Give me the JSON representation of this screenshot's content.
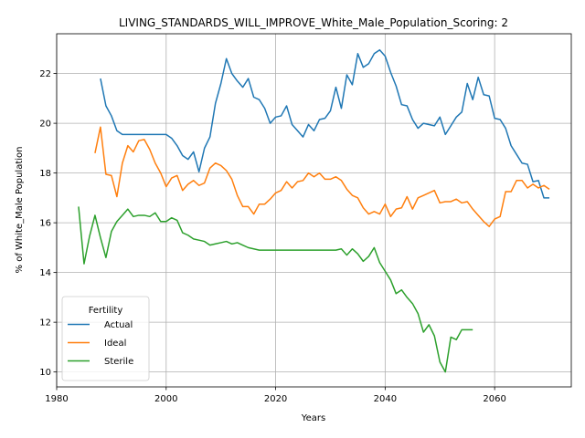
{
  "chart_data": {
    "type": "line",
    "title": "LIVING_STANDARDS_WILL_IMPROVE_White_Male_Population_Scoring: 2",
    "xlabel": "Years",
    "ylabel": "% of White_Male Population",
    "xlim": [
      1980,
      2074
    ],
    "ylim": [
      9.4,
      23.6
    ],
    "xticks": [
      1980,
      2000,
      2020,
      2040,
      2060
    ],
    "yticks": [
      10,
      12,
      14,
      16,
      18,
      20,
      22
    ],
    "grid": true,
    "legend": {
      "title": "Fertility",
      "placement": "lower-left"
    },
    "series": [
      {
        "name": "Actual",
        "color": "#1f77b4",
        "x": [
          1988,
          1989,
          1990,
          1991,
          1992,
          1993,
          1994,
          1995,
          1996,
          1997,
          1998,
          1999,
          2000,
          2001,
          2002,
          2003,
          2004,
          2005,
          2006,
          2007,
          2008,
          2009,
          2010,
          2011,
          2012,
          2013,
          2014,
          2015,
          2016,
          2017,
          2018,
          2019,
          2020,
          2021,
          2022,
          2023,
          2024,
          2025,
          2026,
          2027,
          2028,
          2029,
          2030,
          2031,
          2032,
          2033,
          2034,
          2035,
          2036,
          2037,
          2038,
          2039,
          2040,
          2041,
          2042,
          2043,
          2044,
          2045,
          2046,
          2047,
          2048,
          2049,
          2050,
          2051,
          2052,
          2053,
          2054,
          2055,
          2056,
          2057,
          2058,
          2059,
          2060,
          2061,
          2062,
          2063,
          2064,
          2065,
          2066,
          2067,
          2068,
          2069,
          2070
        ],
        "y": [
          21.8,
          20.7,
          20.3,
          19.7,
          19.55,
          19.55,
          19.55,
          19.55,
          19.55,
          19.55,
          19.55,
          19.55,
          19.55,
          19.4,
          19.1,
          18.7,
          18.55,
          18.85,
          18.05,
          19.0,
          19.45,
          20.8,
          21.6,
          22.6,
          22.0,
          21.7,
          21.45,
          21.8,
          21.05,
          20.95,
          20.6,
          20.0,
          20.25,
          20.3,
          20.7,
          19.95,
          19.7,
          19.45,
          19.95,
          19.7,
          20.15,
          20.2,
          20.5,
          21.45,
          20.6,
          21.95,
          21.55,
          22.8,
          22.25,
          22.4,
          22.8,
          22.95,
          22.7,
          22.05,
          21.5,
          20.75,
          20.7,
          20.15,
          19.8,
          20.0,
          19.95,
          19.9,
          20.25,
          19.55,
          19.9,
          20.25,
          20.45,
          21.6,
          20.95,
          21.85,
          21.15,
          21.1,
          20.2,
          20.15,
          19.8,
          19.1,
          18.75,
          18.4,
          18.35,
          17.65,
          17.7,
          17.0,
          17.0
        ]
      },
      {
        "name": "Ideal",
        "color": "#ff7f0e",
        "x": [
          1987,
          1988,
          1989,
          1990,
          1991,
          1992,
          1993,
          1994,
          1995,
          1996,
          1997,
          1998,
          1999,
          2000,
          2001,
          2002,
          2003,
          2004,
          2005,
          2006,
          2007,
          2008,
          2009,
          2010,
          2011,
          2012,
          2013,
          2014,
          2015,
          2016,
          2017,
          2018,
          2019,
          2020,
          2021,
          2022,
          2023,
          2024,
          2025,
          2026,
          2027,
          2028,
          2029,
          2030,
          2031,
          2032,
          2033,
          2034,
          2035,
          2036,
          2037,
          2038,
          2039,
          2040,
          2041,
          2042,
          2043,
          2044,
          2045,
          2046,
          2047,
          2048,
          2049,
          2050,
          2051,
          2052,
          2053,
          2054,
          2055,
          2056,
          2057,
          2058,
          2059,
          2060,
          2061,
          2062,
          2063,
          2064,
          2065,
          2066,
          2067,
          2068,
          2069,
          2070
        ],
        "y": [
          18.8,
          19.85,
          17.95,
          17.9,
          17.05,
          18.4,
          19.1,
          18.85,
          19.3,
          19.35,
          18.95,
          18.4,
          18.0,
          17.45,
          17.8,
          17.9,
          17.3,
          17.55,
          17.7,
          17.5,
          17.6,
          18.2,
          18.4,
          18.3,
          18.1,
          17.75,
          17.1,
          16.65,
          16.65,
          16.35,
          16.75,
          16.75,
          16.95,
          17.2,
          17.3,
          17.65,
          17.4,
          17.65,
          17.7,
          18.0,
          17.85,
          18.0,
          17.75,
          17.75,
          17.85,
          17.7,
          17.35,
          17.1,
          17.0,
          16.6,
          16.35,
          16.45,
          16.35,
          16.75,
          16.25,
          16.55,
          16.6,
          17.05,
          16.55,
          17.0,
          17.1,
          17.2,
          17.3,
          16.8,
          16.85,
          16.85,
          16.95,
          16.8,
          16.85,
          16.55,
          16.3,
          16.05,
          15.85,
          16.15,
          16.25,
          17.25,
          17.25,
          17.7,
          17.7,
          17.4,
          17.55,
          17.4,
          17.5,
          17.35
        ]
      },
      {
        "name": "Sterile",
        "color": "#2ca02c",
        "x": [
          1984,
          1985,
          1986,
          1987,
          1988,
          1989,
          1990,
          1991,
          1992,
          1993,
          1994,
          1995,
          1996,
          1997,
          1998,
          1999,
          2000,
          2001,
          2002,
          2003,
          2004,
          2005,
          2006,
          2007,
          2008,
          2009,
          2010,
          2011,
          2012,
          2013,
          2014,
          2015,
          2016,
          2017,
          2018,
          2019,
          2020,
          2021,
          2022,
          2023,
          2024,
          2025,
          2026,
          2027,
          2028,
          2029,
          2030,
          2031,
          2032,
          2033,
          2034,
          2035,
          2036,
          2037,
          2038,
          2039,
          2040,
          2041,
          2042,
          2043,
          2044,
          2045,
          2046,
          2047,
          2048,
          2049,
          2050,
          2051,
          2052,
          2053,
          2054,
          2055,
          2056
        ],
        "y": [
          16.65,
          14.35,
          15.45,
          16.3,
          15.4,
          14.6,
          15.65,
          16.05,
          16.3,
          16.55,
          16.25,
          16.3,
          16.3,
          16.25,
          16.4,
          16.05,
          16.05,
          16.2,
          16.1,
          15.6,
          15.5,
          15.35,
          15.3,
          15.25,
          15.1,
          15.15,
          15.2,
          15.25,
          15.15,
          15.2,
          15.1,
          15.0,
          14.95,
          14.9,
          14.9,
          14.9,
          14.9,
          14.9,
          14.9,
          14.9,
          14.9,
          14.9,
          14.9,
          14.9,
          14.9,
          14.9,
          14.9,
          14.9,
          14.95,
          14.7,
          14.95,
          14.75,
          14.45,
          14.65,
          15.0,
          14.4,
          14.05,
          13.7,
          13.15,
          13.3,
          13.0,
          12.75,
          12.35,
          11.6,
          11.9,
          11.45,
          10.4,
          10.0,
          11.4,
          11.3,
          11.7,
          11.7,
          11.7
        ]
      }
    ]
  }
}
